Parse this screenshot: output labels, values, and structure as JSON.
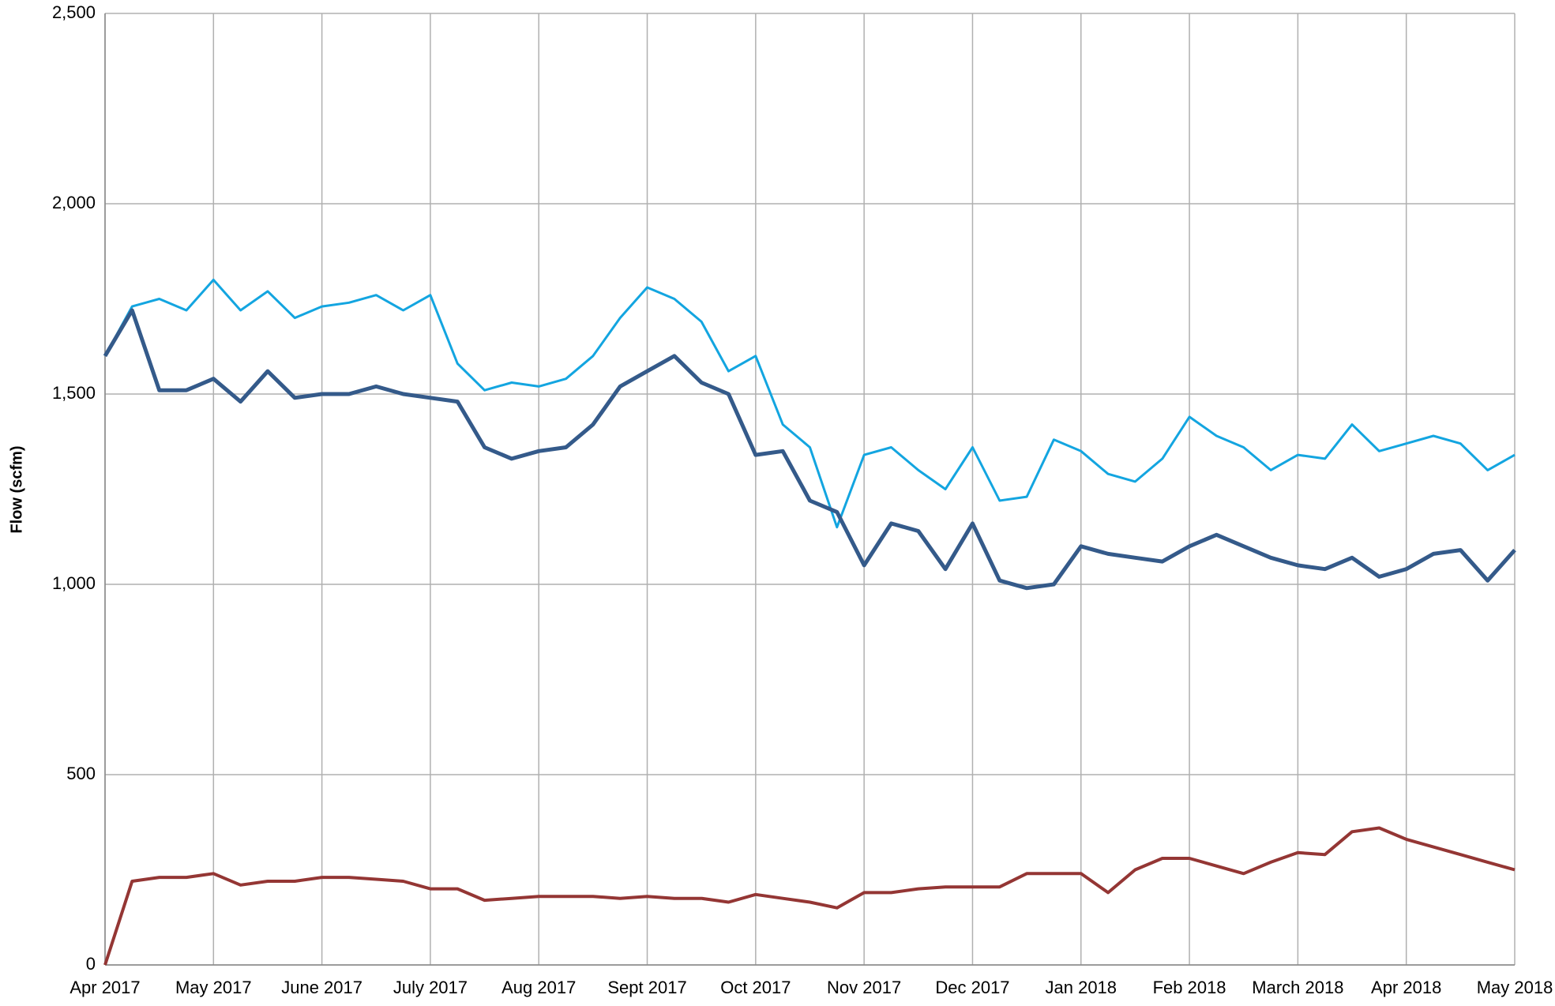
{
  "chart_data": {
    "type": "line",
    "y_label": "Flow (scfm)",
    "categories": [
      "Apr 2017",
      null,
      null,
      null,
      "May 2017",
      null,
      null,
      null,
      "June 2017",
      null,
      null,
      null,
      "July 2017",
      null,
      null,
      null,
      "Aug 2017",
      null,
      null,
      null,
      "Sept 2017",
      null,
      null,
      null,
      "Oct 2017",
      null,
      null,
      null,
      "Nov 2017",
      null,
      null,
      null,
      "Dec 2017",
      null,
      null,
      null,
      "Jan 2018",
      null,
      null,
      null,
      "Feb 2018",
      null,
      null,
      null,
      "March 2018",
      null,
      null,
      null,
      "Apr 2018",
      null,
      null,
      null,
      "May 2018"
    ],
    "series": [
      {
        "color": "#13a5e0",
        "values": [
          1600,
          1730,
          1750,
          1720,
          1800,
          1720,
          1770,
          1700,
          1730,
          1740,
          1760,
          1720,
          1760,
          1580,
          1510,
          1530,
          1520,
          1540,
          1600,
          1700,
          1780,
          1750,
          1690,
          1560,
          1600,
          1420,
          1360,
          1150,
          1340,
          1360,
          1300,
          1250,
          1360,
          1220,
          1230,
          1380,
          1350,
          1290,
          1270,
          1330,
          1440,
          1390,
          1360,
          1300,
          1340,
          1330,
          1420,
          1350,
          1370,
          1390,
          1370,
          1300,
          1340
        ]
      },
      {
        "color": "#345a8a",
        "values": [
          1600,
          1720,
          1510,
          1510,
          1540,
          1480,
          1560,
          1490,
          1500,
          1500,
          1520,
          1500,
          1490,
          1480,
          1360,
          1330,
          1350,
          1360,
          1420,
          1520,
          1560,
          1600,
          1530,
          1500,
          1340,
          1350,
          1220,
          1190,
          1050,
          1160,
          1140,
          1040,
          1160,
          1010,
          990,
          1000,
          1100,
          1080,
          1070,
          1060,
          1100,
          1130,
          1100,
          1070,
          1050,
          1040,
          1070,
          1020,
          1040,
          1080,
          1090,
          1010,
          1090
        ]
      },
      {
        "color": "#943634",
        "values": [
          0,
          220,
          230,
          230,
          240,
          210,
          220,
          220,
          230,
          230,
          225,
          220,
          200,
          200,
          170,
          175,
          180,
          180,
          180,
          175,
          180,
          175,
          175,
          165,
          185,
          175,
          165,
          150,
          190,
          190,
          200,
          205,
          205,
          205,
          240,
          240,
          240,
          190,
          250,
          280,
          280,
          260,
          240,
          270,
          295,
          290,
          350,
          360,
          330,
          310,
          290,
          270,
          250
        ]
      }
    ],
    "ylim": [
      0,
      2500
    ],
    "yticks": [
      0,
      500,
      {
        "value": 1000,
        "label": "1,000"
      },
      {
        "value": 1500,
        "label": "1,500"
      },
      {
        "value": 2000,
        "label": "2,000"
      },
      {
        "value": 2500,
        "label": "2,500"
      }
    ],
    "grid": true
  }
}
